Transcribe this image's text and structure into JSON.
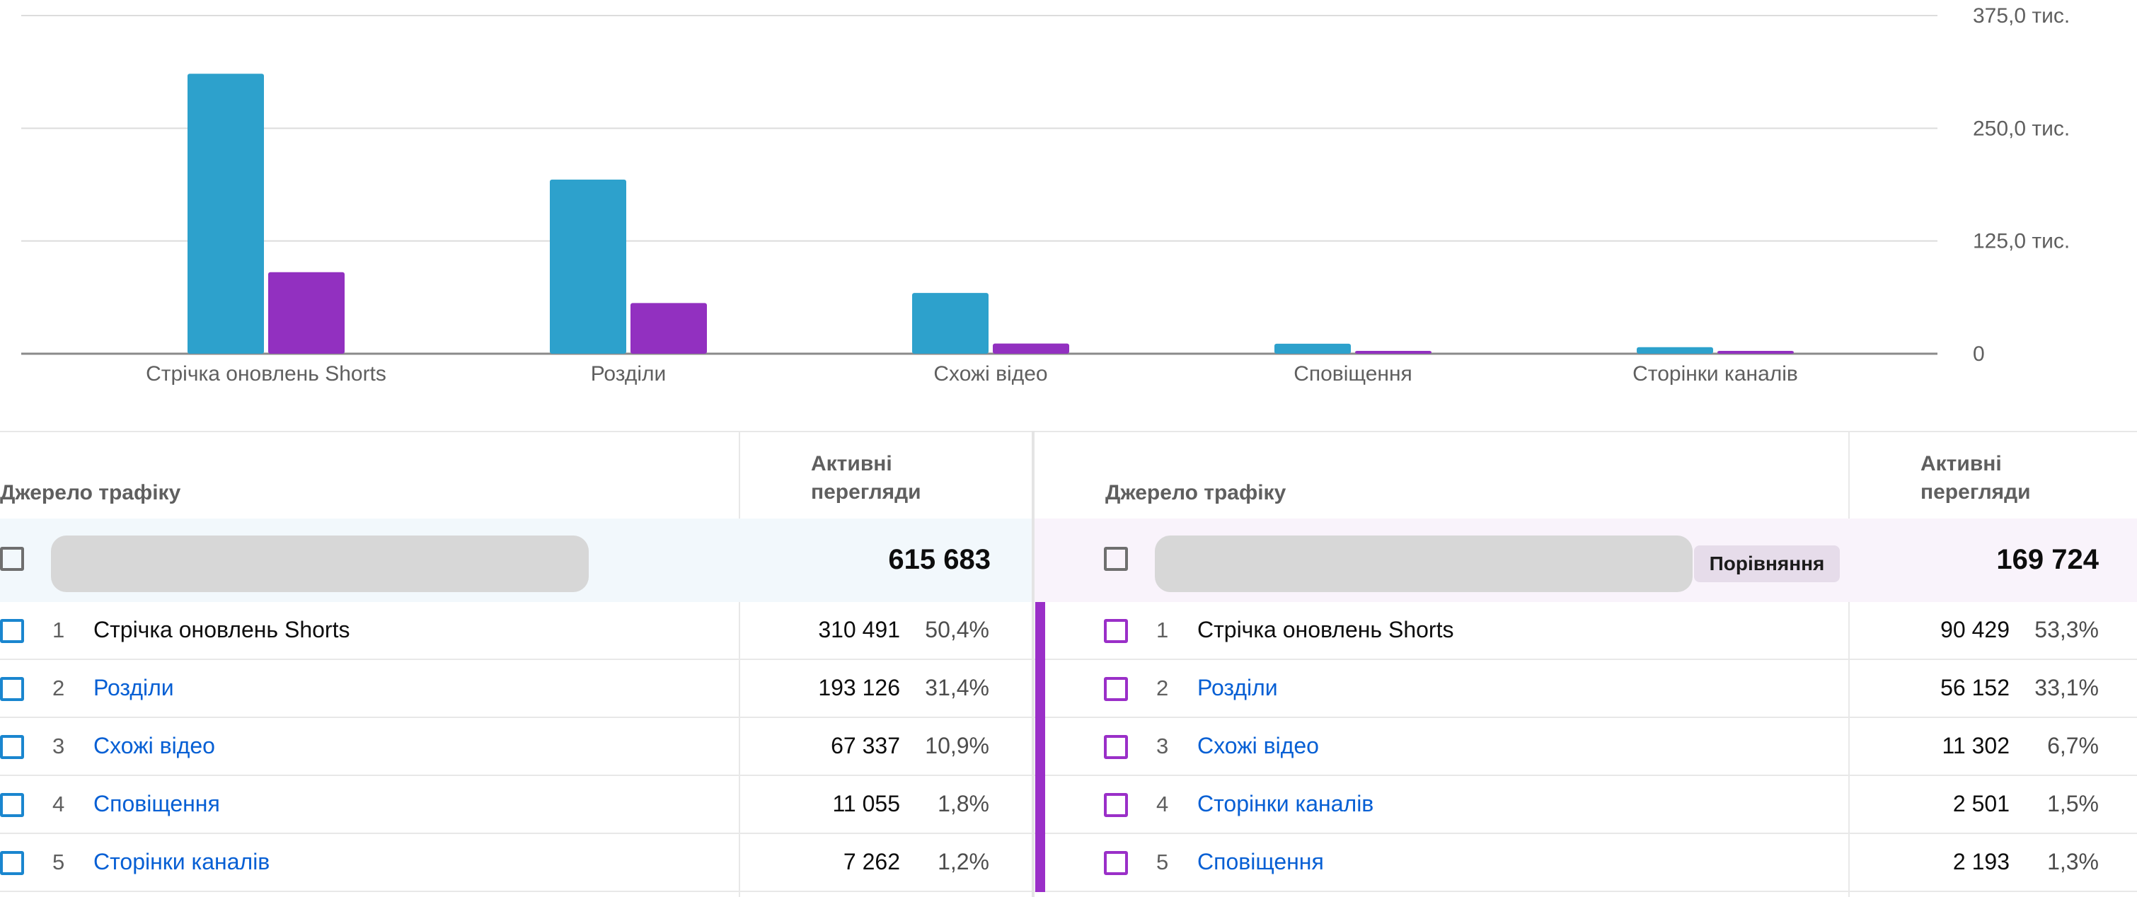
{
  "chart_data": {
    "type": "bar",
    "categories": [
      "Стрічка оновлень Shorts",
      "Розділи",
      "Схожі відео",
      "Сповіщення",
      "Сторінки каналів"
    ],
    "series": [
      {
        "color": "#2da1cc",
        "values": [
          310491,
          193126,
          67337,
          11055,
          7262
        ]
      },
      {
        "color": "#9230c0",
        "values": [
          90429,
          56152,
          11302,
          2193,
          2501
        ]
      }
    ],
    "ylim": [
      0,
      375000
    ],
    "yticks": [
      0,
      125000,
      250000,
      375000
    ],
    "ytick_labels": [
      "0",
      "125,0 тис.",
      "250,0 тис.",
      "375,0 тис."
    ],
    "grid": true,
    "title": "",
    "xlabel": "",
    "ylabel": ""
  },
  "left_table": {
    "col_source": "Джерело трафіку",
    "col_metric_line1": "Активні",
    "col_metric_line2": "перегляди",
    "total": "615 683",
    "accent_color": "#1a86cf",
    "rows": [
      {
        "rank": "1",
        "name": "Стрічка оновлень Shorts",
        "value": "310 491",
        "pct": "50,4%"
      },
      {
        "rank": "2",
        "name": "Розділи",
        "value": "193 126",
        "pct": "31,4%"
      },
      {
        "rank": "3",
        "name": "Схожі відео",
        "value": "67 337",
        "pct": "10,9%"
      },
      {
        "rank": "4",
        "name": "Сповіщення",
        "value": "11 055",
        "pct": "1,8%"
      },
      {
        "rank": "5",
        "name": "Сторінки каналів",
        "value": "7 262",
        "pct": "1,2%"
      }
    ]
  },
  "right_table": {
    "col_source": "Джерело трафіку",
    "col_metric_line1": "Активні",
    "col_metric_line2": "перегляди",
    "compare_chip": "Порівняння",
    "total": "169 724",
    "accent_color": "#9a2fc8",
    "rows": [
      {
        "rank": "1",
        "name": "Стрічка оновлень Shorts",
        "value": "90 429",
        "pct": "53,3%"
      },
      {
        "rank": "2",
        "name": "Розділи",
        "value": "56 152",
        "pct": "33,1%"
      },
      {
        "rank": "3",
        "name": "Схожі відео",
        "value": "11 302",
        "pct": "6,7%"
      },
      {
        "rank": "4",
        "name": "Сторінки каналів",
        "value": "2 501",
        "pct": "1,5%"
      },
      {
        "rank": "5",
        "name": "Сповіщення",
        "value": "2 193",
        "pct": "1,3%"
      }
    ]
  }
}
